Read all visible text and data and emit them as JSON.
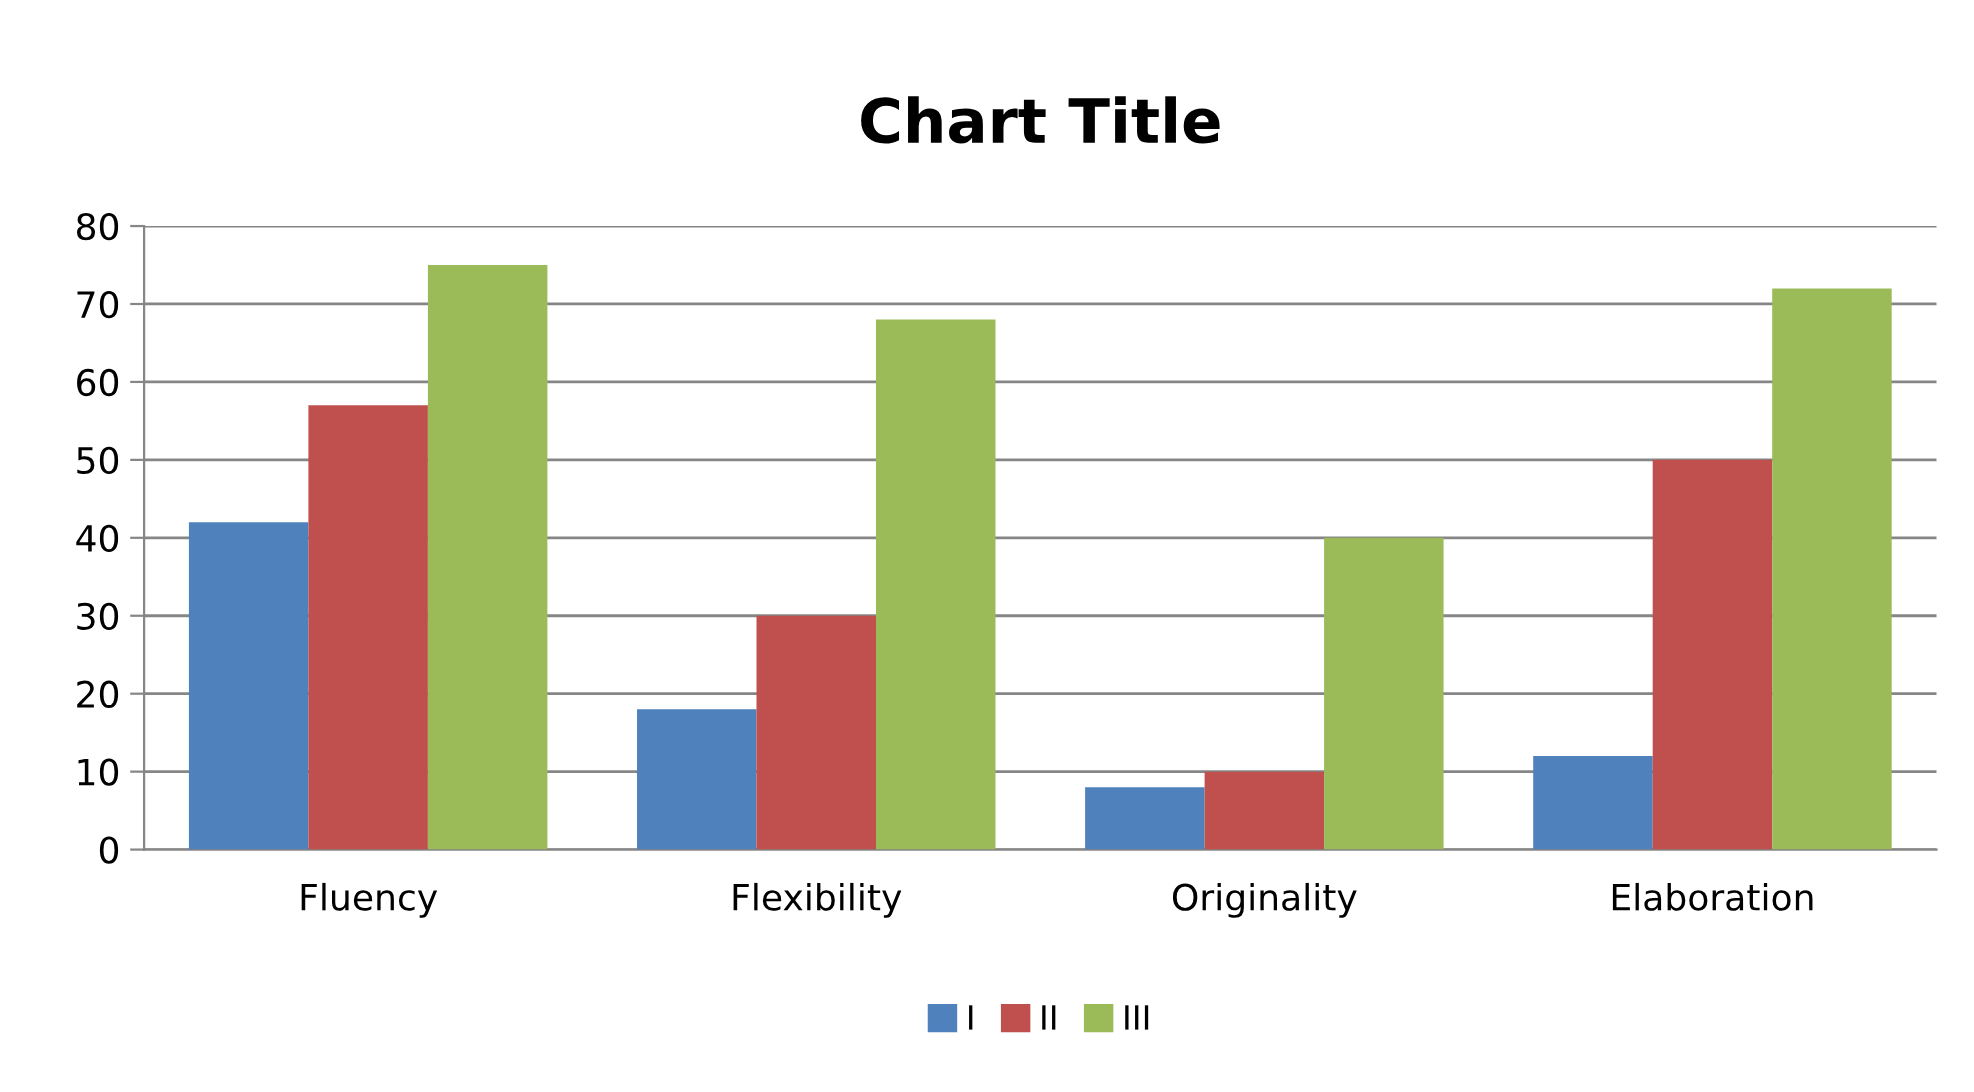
{
  "chart_data": {
    "type": "bar",
    "title": "Chart Title",
    "categories": [
      "Fluency",
      "Flexibility",
      "Originality",
      "Elaboration"
    ],
    "series": [
      {
        "name": "I",
        "color": "#4f81bd",
        "values": [
          42,
          18,
          8,
          12
        ]
      },
      {
        "name": "II",
        "color": "#c0504d",
        "values": [
          57,
          30,
          10,
          50
        ]
      },
      {
        "name": "III",
        "color": "#9bbb59",
        "values": [
          75,
          68,
          40,
          72
        ]
      }
    ],
    "ylim": [
      0,
      80
    ],
    "yticks": [
      0,
      10,
      20,
      30,
      40,
      50,
      60,
      70,
      80
    ],
    "grid": "y",
    "legend": "bottom"
  }
}
